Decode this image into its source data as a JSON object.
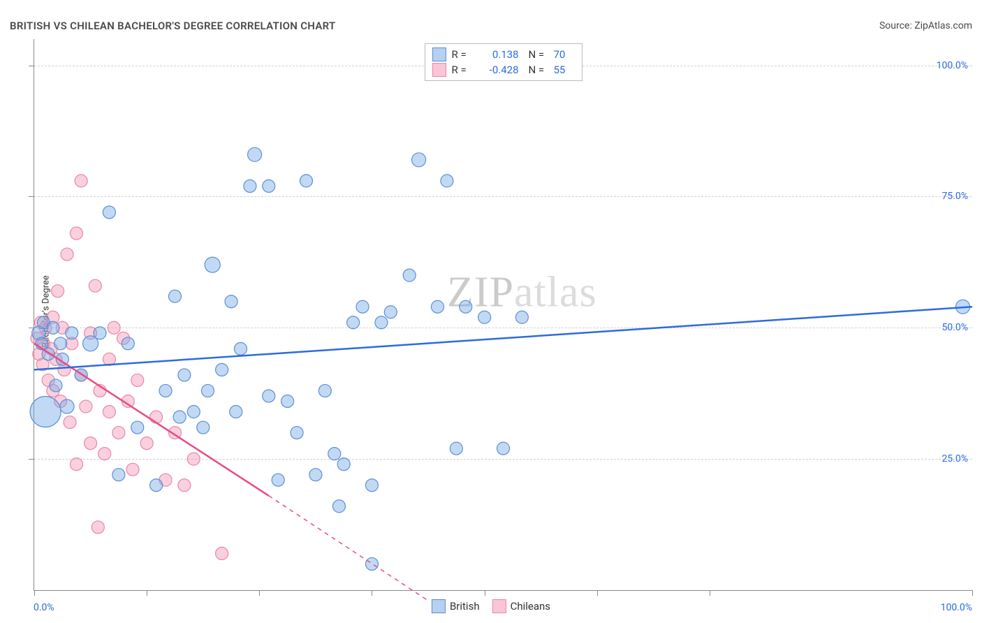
{
  "header": {
    "title": "BRITISH VS CHILEAN BACHELOR'S DEGREE CORRELATION CHART",
    "source": "Source: ZipAtlas.com"
  },
  "watermark": {
    "zip": "ZIP",
    "atlas": "atlas"
  },
  "chart": {
    "type": "scatter",
    "background_color": "#ffffff",
    "grid_color": "#d0d0d0",
    "axis_color": "#888888",
    "ylabel": "Bachelor's Degree",
    "label_fontsize": 13,
    "xlim": [
      0,
      100
    ],
    "ylim": [
      0,
      105
    ],
    "ytick_positions": [
      25,
      50,
      75,
      100
    ],
    "ytick_labels": [
      "25.0%",
      "50.0%",
      "75.0%",
      "100.0%"
    ],
    "ytick_color": "#2b6cdf",
    "xtick_positions": [
      0,
      12,
      24,
      36,
      48,
      60,
      72,
      100
    ],
    "x_axis_labels": {
      "left": {
        "text": "0.0%",
        "x_pct": 0
      },
      "right": {
        "text": "100.0%",
        "x_pct": 100
      }
    },
    "series": {
      "british": {
        "label": "British",
        "marker_fill": "rgba(120,170,230,0.45)",
        "marker_stroke": "#5b8fd6",
        "line_color": "#2b6cdf",
        "line_width": 2.5,
        "r": 0.138,
        "n": 70,
        "regression": {
          "x1": 0,
          "y1": 42,
          "x2": 100,
          "y2": 54,
          "solid_x2": 100,
          "solid_y2": 54
        },
        "points": [
          {
            "x": 0.5,
            "y": 49,
            "r": 10
          },
          {
            "x": 0.8,
            "y": 47,
            "r": 9
          },
          {
            "x": 1,
            "y": 51,
            "r": 9
          },
          {
            "x": 1.2,
            "y": 34,
            "r": 22
          },
          {
            "x": 1.5,
            "y": 45,
            "r": 9
          },
          {
            "x": 2,
            "y": 50,
            "r": 9
          },
          {
            "x": 2.3,
            "y": 39,
            "r": 9
          },
          {
            "x": 2.8,
            "y": 47,
            "r": 9
          },
          {
            "x": 3,
            "y": 44,
            "r": 9
          },
          {
            "x": 3.5,
            "y": 35,
            "r": 10
          },
          {
            "x": 4,
            "y": 49,
            "r": 9
          },
          {
            "x": 5,
            "y": 41,
            "r": 9
          },
          {
            "x": 6,
            "y": 47,
            "r": 11
          },
          {
            "x": 7,
            "y": 49,
            "r": 9
          },
          {
            "x": 8,
            "y": 72,
            "r": 9
          },
          {
            "x": 9,
            "y": 22,
            "r": 9
          },
          {
            "x": 10,
            "y": 47,
            "r": 9
          },
          {
            "x": 11,
            "y": 31,
            "r": 9
          },
          {
            "x": 13,
            "y": 20,
            "r": 9
          },
          {
            "x": 14,
            "y": 38,
            "r": 9
          },
          {
            "x": 15,
            "y": 56,
            "r": 9
          },
          {
            "x": 15.5,
            "y": 33,
            "r": 9
          },
          {
            "x": 16,
            "y": 41,
            "r": 9
          },
          {
            "x": 17,
            "y": 34,
            "r": 9
          },
          {
            "x": 18,
            "y": 31,
            "r": 9
          },
          {
            "x": 18.5,
            "y": 38,
            "r": 9
          },
          {
            "x": 19,
            "y": 62,
            "r": 11
          },
          {
            "x": 20,
            "y": 42,
            "r": 9
          },
          {
            "x": 21,
            "y": 55,
            "r": 9
          },
          {
            "x": 21.5,
            "y": 34,
            "r": 9
          },
          {
            "x": 22,
            "y": 46,
            "r": 9
          },
          {
            "x": 23,
            "y": 77,
            "r": 9
          },
          {
            "x": 23.5,
            "y": 83,
            "r": 10
          },
          {
            "x": 25,
            "y": 77,
            "r": 9
          },
          {
            "x": 25,
            "y": 37,
            "r": 9
          },
          {
            "x": 26,
            "y": 21,
            "r": 9
          },
          {
            "x": 27,
            "y": 36,
            "r": 9
          },
          {
            "x": 28,
            "y": 30,
            "r": 9
          },
          {
            "x": 29,
            "y": 78,
            "r": 9
          },
          {
            "x": 30,
            "y": 22,
            "r": 9
          },
          {
            "x": 31,
            "y": 38,
            "r": 9
          },
          {
            "x": 32,
            "y": 26,
            "r": 9
          },
          {
            "x": 32.5,
            "y": 16,
            "r": 9
          },
          {
            "x": 33,
            "y": 24,
            "r": 9
          },
          {
            "x": 34,
            "y": 51,
            "r": 9
          },
          {
            "x": 35,
            "y": 54,
            "r": 9
          },
          {
            "x": 36,
            "y": 20,
            "r": 9
          },
          {
            "x": 36,
            "y": 5,
            "r": 9
          },
          {
            "x": 37,
            "y": 51,
            "r": 9
          },
          {
            "x": 38,
            "y": 53,
            "r": 9
          },
          {
            "x": 40,
            "y": 60,
            "r": 9
          },
          {
            "x": 41,
            "y": 82,
            "r": 10
          },
          {
            "x": 43,
            "y": 54,
            "r": 9
          },
          {
            "x": 44,
            "y": 78,
            "r": 9
          },
          {
            "x": 45,
            "y": 27,
            "r": 9
          },
          {
            "x": 46,
            "y": 54,
            "r": 9
          },
          {
            "x": 48,
            "y": 52,
            "r": 9
          },
          {
            "x": 50,
            "y": 27,
            "r": 9
          },
          {
            "x": 52,
            "y": 52,
            "r": 9
          },
          {
            "x": 99,
            "y": 54,
            "r": 10
          }
        ]
      },
      "chileans": {
        "label": "Chileans",
        "marker_fill": "rgba(245,150,180,0.45)",
        "marker_stroke": "#e887a8",
        "line_color": "#e84b87",
        "line_width": 2.5,
        "r": -0.428,
        "n": 55,
        "regression": {
          "x1": 0,
          "y1": 47,
          "x2": 42,
          "y2": -2,
          "solid_x2": 25,
          "solid_y2": 18
        },
        "points": [
          {
            "x": 0.3,
            "y": 48,
            "r": 9
          },
          {
            "x": 0.5,
            "y": 45,
            "r": 9
          },
          {
            "x": 0.7,
            "y": 51,
            "r": 9
          },
          {
            "x": 0.9,
            "y": 43,
            "r": 9
          },
          {
            "x": 1,
            "y": 47,
            "r": 9
          },
          {
            "x": 1.2,
            "y": 50,
            "r": 9
          },
          {
            "x": 1.5,
            "y": 40,
            "r": 9
          },
          {
            "x": 1.8,
            "y": 46,
            "r": 9
          },
          {
            "x": 2,
            "y": 52,
            "r": 9
          },
          {
            "x": 2,
            "y": 38,
            "r": 9
          },
          {
            "x": 2.3,
            "y": 44,
            "r": 9
          },
          {
            "x": 2.5,
            "y": 57,
            "r": 9
          },
          {
            "x": 2.8,
            "y": 36,
            "r": 9
          },
          {
            "x": 3,
            "y": 50,
            "r": 9
          },
          {
            "x": 3.2,
            "y": 42,
            "r": 9
          },
          {
            "x": 3.5,
            "y": 64,
            "r": 9
          },
          {
            "x": 3.8,
            "y": 32,
            "r": 9
          },
          {
            "x": 4,
            "y": 47,
            "r": 9
          },
          {
            "x": 4.5,
            "y": 68,
            "r": 9
          },
          {
            "x": 4.5,
            "y": 24,
            "r": 9
          },
          {
            "x": 5,
            "y": 41,
            "r": 9
          },
          {
            "x": 5,
            "y": 78,
            "r": 9
          },
          {
            "x": 5.5,
            "y": 35,
            "r": 9
          },
          {
            "x": 6,
            "y": 28,
            "r": 9
          },
          {
            "x": 6,
            "y": 49,
            "r": 9
          },
          {
            "x": 6.5,
            "y": 58,
            "r": 9
          },
          {
            "x": 6.8,
            "y": 12,
            "r": 9
          },
          {
            "x": 7,
            "y": 38,
            "r": 9
          },
          {
            "x": 7.5,
            "y": 26,
            "r": 9
          },
          {
            "x": 8,
            "y": 34,
            "r": 9
          },
          {
            "x": 8,
            "y": 44,
            "r": 9
          },
          {
            "x": 8.5,
            "y": 50,
            "r": 9
          },
          {
            "x": 9,
            "y": 30,
            "r": 9
          },
          {
            "x": 9.5,
            "y": 48,
            "r": 9
          },
          {
            "x": 10,
            "y": 36,
            "r": 9
          },
          {
            "x": 10.5,
            "y": 23,
            "r": 9
          },
          {
            "x": 11,
            "y": 40,
            "r": 9
          },
          {
            "x": 12,
            "y": 28,
            "r": 9
          },
          {
            "x": 13,
            "y": 33,
            "r": 9
          },
          {
            "x": 14,
            "y": 21,
            "r": 9
          },
          {
            "x": 15,
            "y": 30,
            "r": 9
          },
          {
            "x": 16,
            "y": 20,
            "r": 9
          },
          {
            "x": 17,
            "y": 25,
            "r": 9
          },
          {
            "x": 20,
            "y": 7,
            "r": 9
          }
        ]
      }
    },
    "legend_top": [
      {
        "swatch_fill": "rgba(120,170,230,0.55)",
        "swatch_stroke": "#5b8fd6",
        "r_label": "R =",
        "r": "0.138",
        "n_label": "N =",
        "n": "70"
      },
      {
        "swatch_fill": "rgba(245,150,180,0.55)",
        "swatch_stroke": "#e887a8",
        "r_label": "R =",
        "r": "-0.428",
        "n_label": "N =",
        "n": "55"
      }
    ],
    "legend_bottom": [
      {
        "swatch_fill": "rgba(120,170,230,0.55)",
        "swatch_stroke": "#5b8fd6",
        "label": "British"
      },
      {
        "swatch_fill": "rgba(245,150,180,0.55)",
        "swatch_stroke": "#e887a8",
        "label": "Chileans"
      }
    ]
  }
}
